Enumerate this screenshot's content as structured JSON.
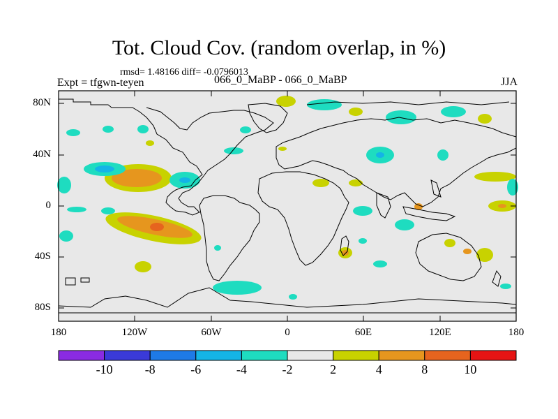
{
  "title": "Tot. Cloud Cov. (random overlap, in %)",
  "stats": "rmsd= 1.48166 diff= -0.0796013",
  "expt": "Expt = tfgwn-teyen",
  "case": "066_0_MaBP - 066_0_MaBP",
  "season": "JJA",
  "lat_labels": [
    "80N",
    "40N",
    "0",
    "40S",
    "80S"
  ],
  "lon_labels": [
    "180",
    "120W",
    "60W",
    "0",
    "60E",
    "120E",
    "180"
  ],
  "colorbar": {
    "labels": [
      "-10",
      "-8",
      "-6",
      "-4",
      "-2",
      "2",
      "4",
      "8",
      "10"
    ],
    "colors": [
      "#8a2be2",
      "#3a3ad8",
      "#1e7ae6",
      "#14b4e6",
      "#1edcc0",
      "#e8e8e8",
      "#c8d200",
      "#e6961e",
      "#e6641e",
      "#e61414"
    ]
  },
  "colors": {
    "background": "#e8e8e8",
    "coast": "#000000"
  }
}
